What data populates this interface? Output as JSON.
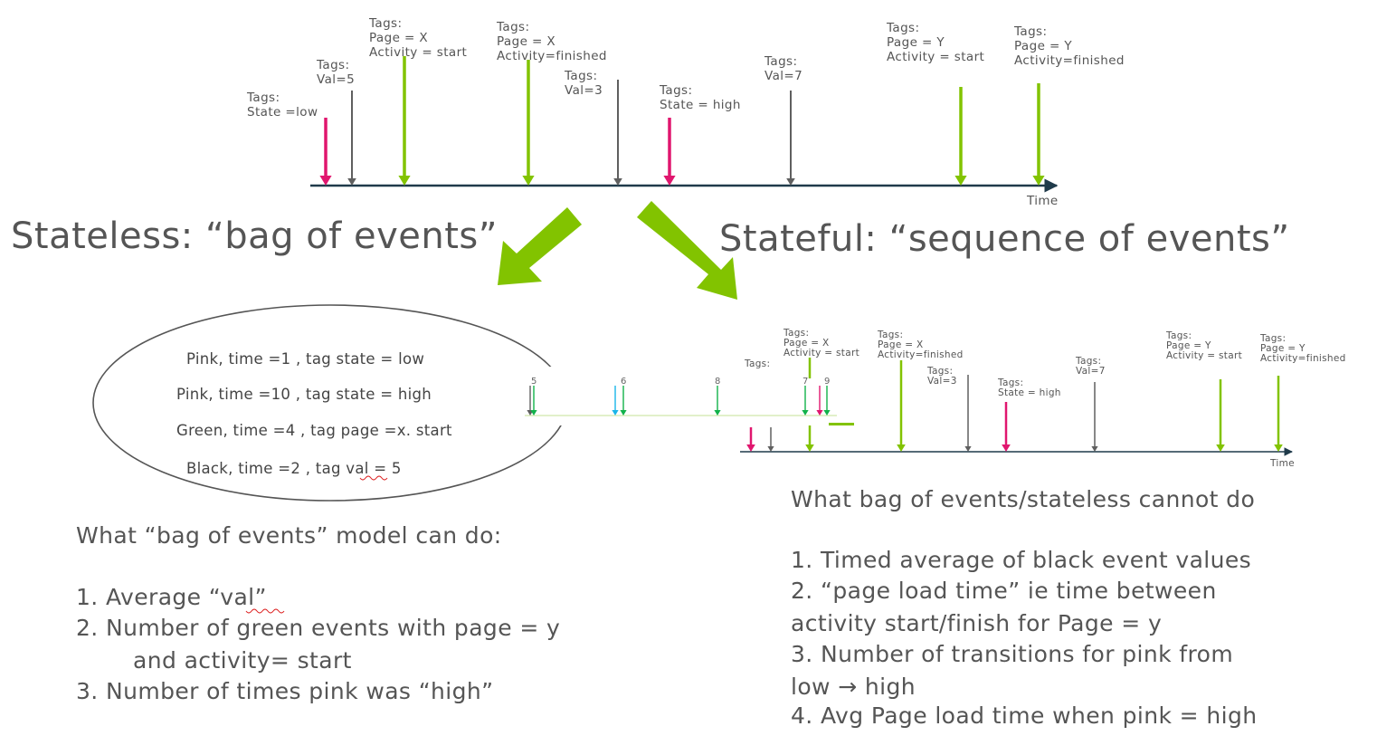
{
  "colors": {
    "pink": "#e0166e",
    "green": "#82c300",
    "gray": "#5f5f5f",
    "axis": "#1f3a4a",
    "text": "#555555",
    "bright_green": "#12b24a",
    "cyan": "#19b5e8"
  },
  "timeline": {
    "axis_label": "Time",
    "events": [
      {
        "color": "pink",
        "tags": [
          "Tags:",
          "State =low"
        ]
      },
      {
        "color": "gray",
        "tags": [
          "Tags:",
          "Val=5"
        ]
      },
      {
        "color": "green",
        "tags": [
          "Tags:",
          "Page = X",
          "Activity = start"
        ]
      },
      {
        "color": "green",
        "tags": [
          "Tags:",
          "Page = X",
          "Activity=finished"
        ]
      },
      {
        "color": "gray",
        "tags": [
          "Tags:",
          "Val=3"
        ]
      },
      {
        "color": "pink",
        "tags": [
          "Tags:",
          "State = high"
        ]
      },
      {
        "color": "gray",
        "tags": [
          "Tags:",
          "Val=7"
        ]
      },
      {
        "color": "green",
        "tags": [
          "Tags:",
          "Page = Y",
          "Activity = start"
        ]
      },
      {
        "color": "green",
        "tags": [
          "Tags:",
          "Page = Y",
          "Activity=finished"
        ]
      }
    ]
  },
  "small_timeline": {
    "axis_label": "Time",
    "partial_label": "Tags:",
    "events": [
      {
        "color": "pink",
        "tags": []
      },
      {
        "color": "gray",
        "tags": []
      },
      {
        "color": "green",
        "tags": [
          "Tags:",
          "Page = X",
          "Activity = start"
        ]
      },
      {
        "color": "green",
        "tags": [
          "Tags:",
          "Page = X",
          "Activity=finished"
        ]
      },
      {
        "color": "gray",
        "tags": [
          "Tags:",
          "Val=3"
        ]
      },
      {
        "color": "pink",
        "tags": [
          "Tags:",
          "State = high"
        ]
      },
      {
        "color": "gray",
        "tags": [
          "Tags:",
          "Val=7"
        ]
      },
      {
        "color": "green",
        "tags": [
          "Tags:",
          "Page = Y",
          "Activity = start"
        ]
      },
      {
        "color": "green",
        "tags": [
          "Tags:",
          "Page = Y",
          "Activity=finished"
        ]
      }
    ]
  },
  "mini_events": [
    {
      "color": "gray",
      "label": ""
    },
    {
      "color": "bright_green",
      "label": "5"
    },
    {
      "color": "cyan",
      "label": ""
    },
    {
      "color": "bright_green",
      "label": "6"
    },
    {
      "color": "bright_green",
      "label": "8"
    },
    {
      "color": "bright_green",
      "label": "7"
    },
    {
      "color": "pink",
      "label": ""
    },
    {
      "color": "bright_green",
      "label": "9"
    }
  ],
  "stateless": {
    "heading": "Stateless:  “bag of events”",
    "bag": [
      "Pink, time  =1 , tag state = low",
      "Pink, time  =10 , tag state = high",
      "Green, time  =4 , tag page =x. start",
      "Black, time  =2 , tag val = 5"
    ],
    "can_do_title": "What “bag of events” model can do:",
    "can_do": [
      "1.  Average  “val”",
      "2.  Number of green events with page = y",
      "and activity= start",
      "3. Number of times pink was “high”"
    ]
  },
  "stateful": {
    "heading": "Stateful: “sequence of events”",
    "cannot_title": "What bag of events/stateless cannot do",
    "cannot": [
      "1. Timed average of  black event values",
      "2. “page load time” ie time between",
      "activity start/finish for Page = y",
      "3. Number of transitions for pink from",
      " low  →  high",
      "4. Avg Page load time when pink = high"
    ]
  }
}
